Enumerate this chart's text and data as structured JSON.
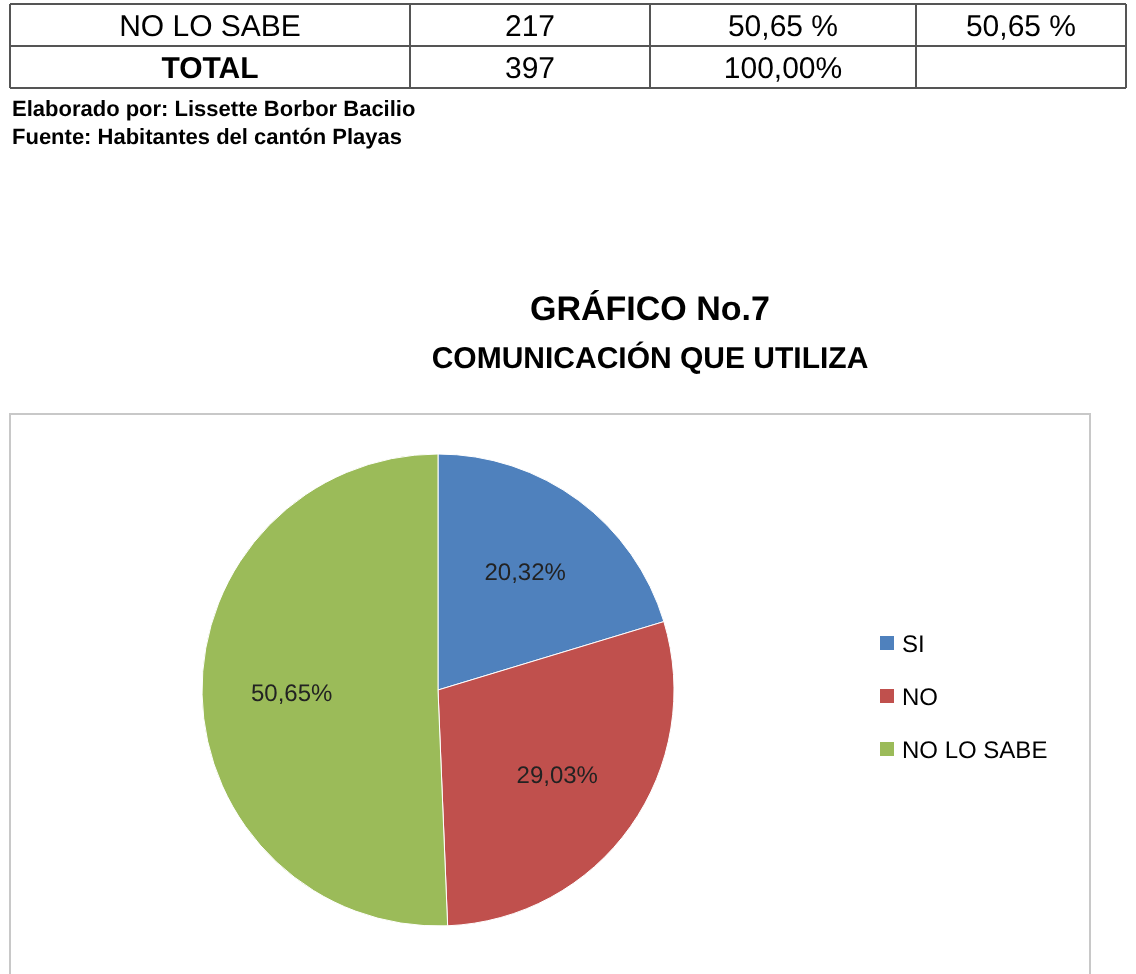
{
  "chart_data": {
    "type": "pie",
    "title": "GRÁFICO No.7",
    "subtitle": "COMUNICACIÓN QUE UTILIZA",
    "categories": [
      "SI",
      "NO",
      "NO LO SABE"
    ],
    "values": [
      20.32,
      29.03,
      50.65
    ],
    "value_labels": [
      "20,32%",
      "29,03%",
      "50,65%"
    ],
    "colors": [
      "#4f81bd",
      "#c0504d",
      "#9bbb59"
    ],
    "legend": "right",
    "annotations": [
      "NO LO SABE",
      "217",
      "50,65 %",
      "50,65 %",
      "TOTAL",
      "397",
      "100,00%",
      "Elaborado por: Lissette Borbor Bacilio",
      "Fuente: Habitantes del cantón Playas"
    ]
  }
}
